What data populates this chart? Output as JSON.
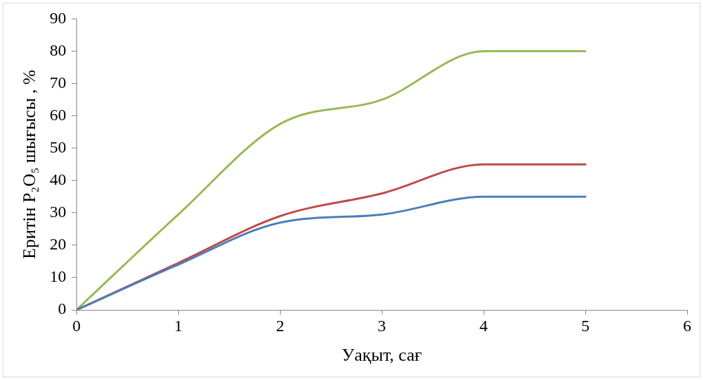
{
  "chart_data": {
    "type": "line",
    "xlabel": "Уақыт, сағ",
    "ylabel": "Еритін P₂O₅ шығысы , %",
    "xlim": [
      0,
      6
    ],
    "xticks": [
      0,
      1,
      2,
      3,
      4,
      5,
      6
    ],
    "ylim": [
      0,
      90
    ],
    "yticks": [
      0,
      10,
      20,
      30,
      40,
      50,
      60,
      70,
      80,
      90
    ],
    "grid": false,
    "legend": false,
    "marker": "none",
    "line_style": "solid",
    "series": [
      {
        "color": "#4a7ebb",
        "x": [
          0,
          1,
          2,
          3,
          4,
          5
        ],
        "values": [
          0,
          14,
          27,
          29.5,
          35,
          35
        ]
      },
      {
        "color": "#be4b48",
        "x": [
          0,
          1,
          2,
          3,
          4,
          5
        ],
        "values": [
          0,
          14.5,
          29,
          36,
          45,
          45
        ]
      },
      {
        "color": "#98b954",
        "x": [
          0,
          1,
          2,
          3,
          4,
          5
        ],
        "values": [
          0,
          29.5,
          57.5,
          65,
          80,
          80
        ]
      }
    ]
  }
}
